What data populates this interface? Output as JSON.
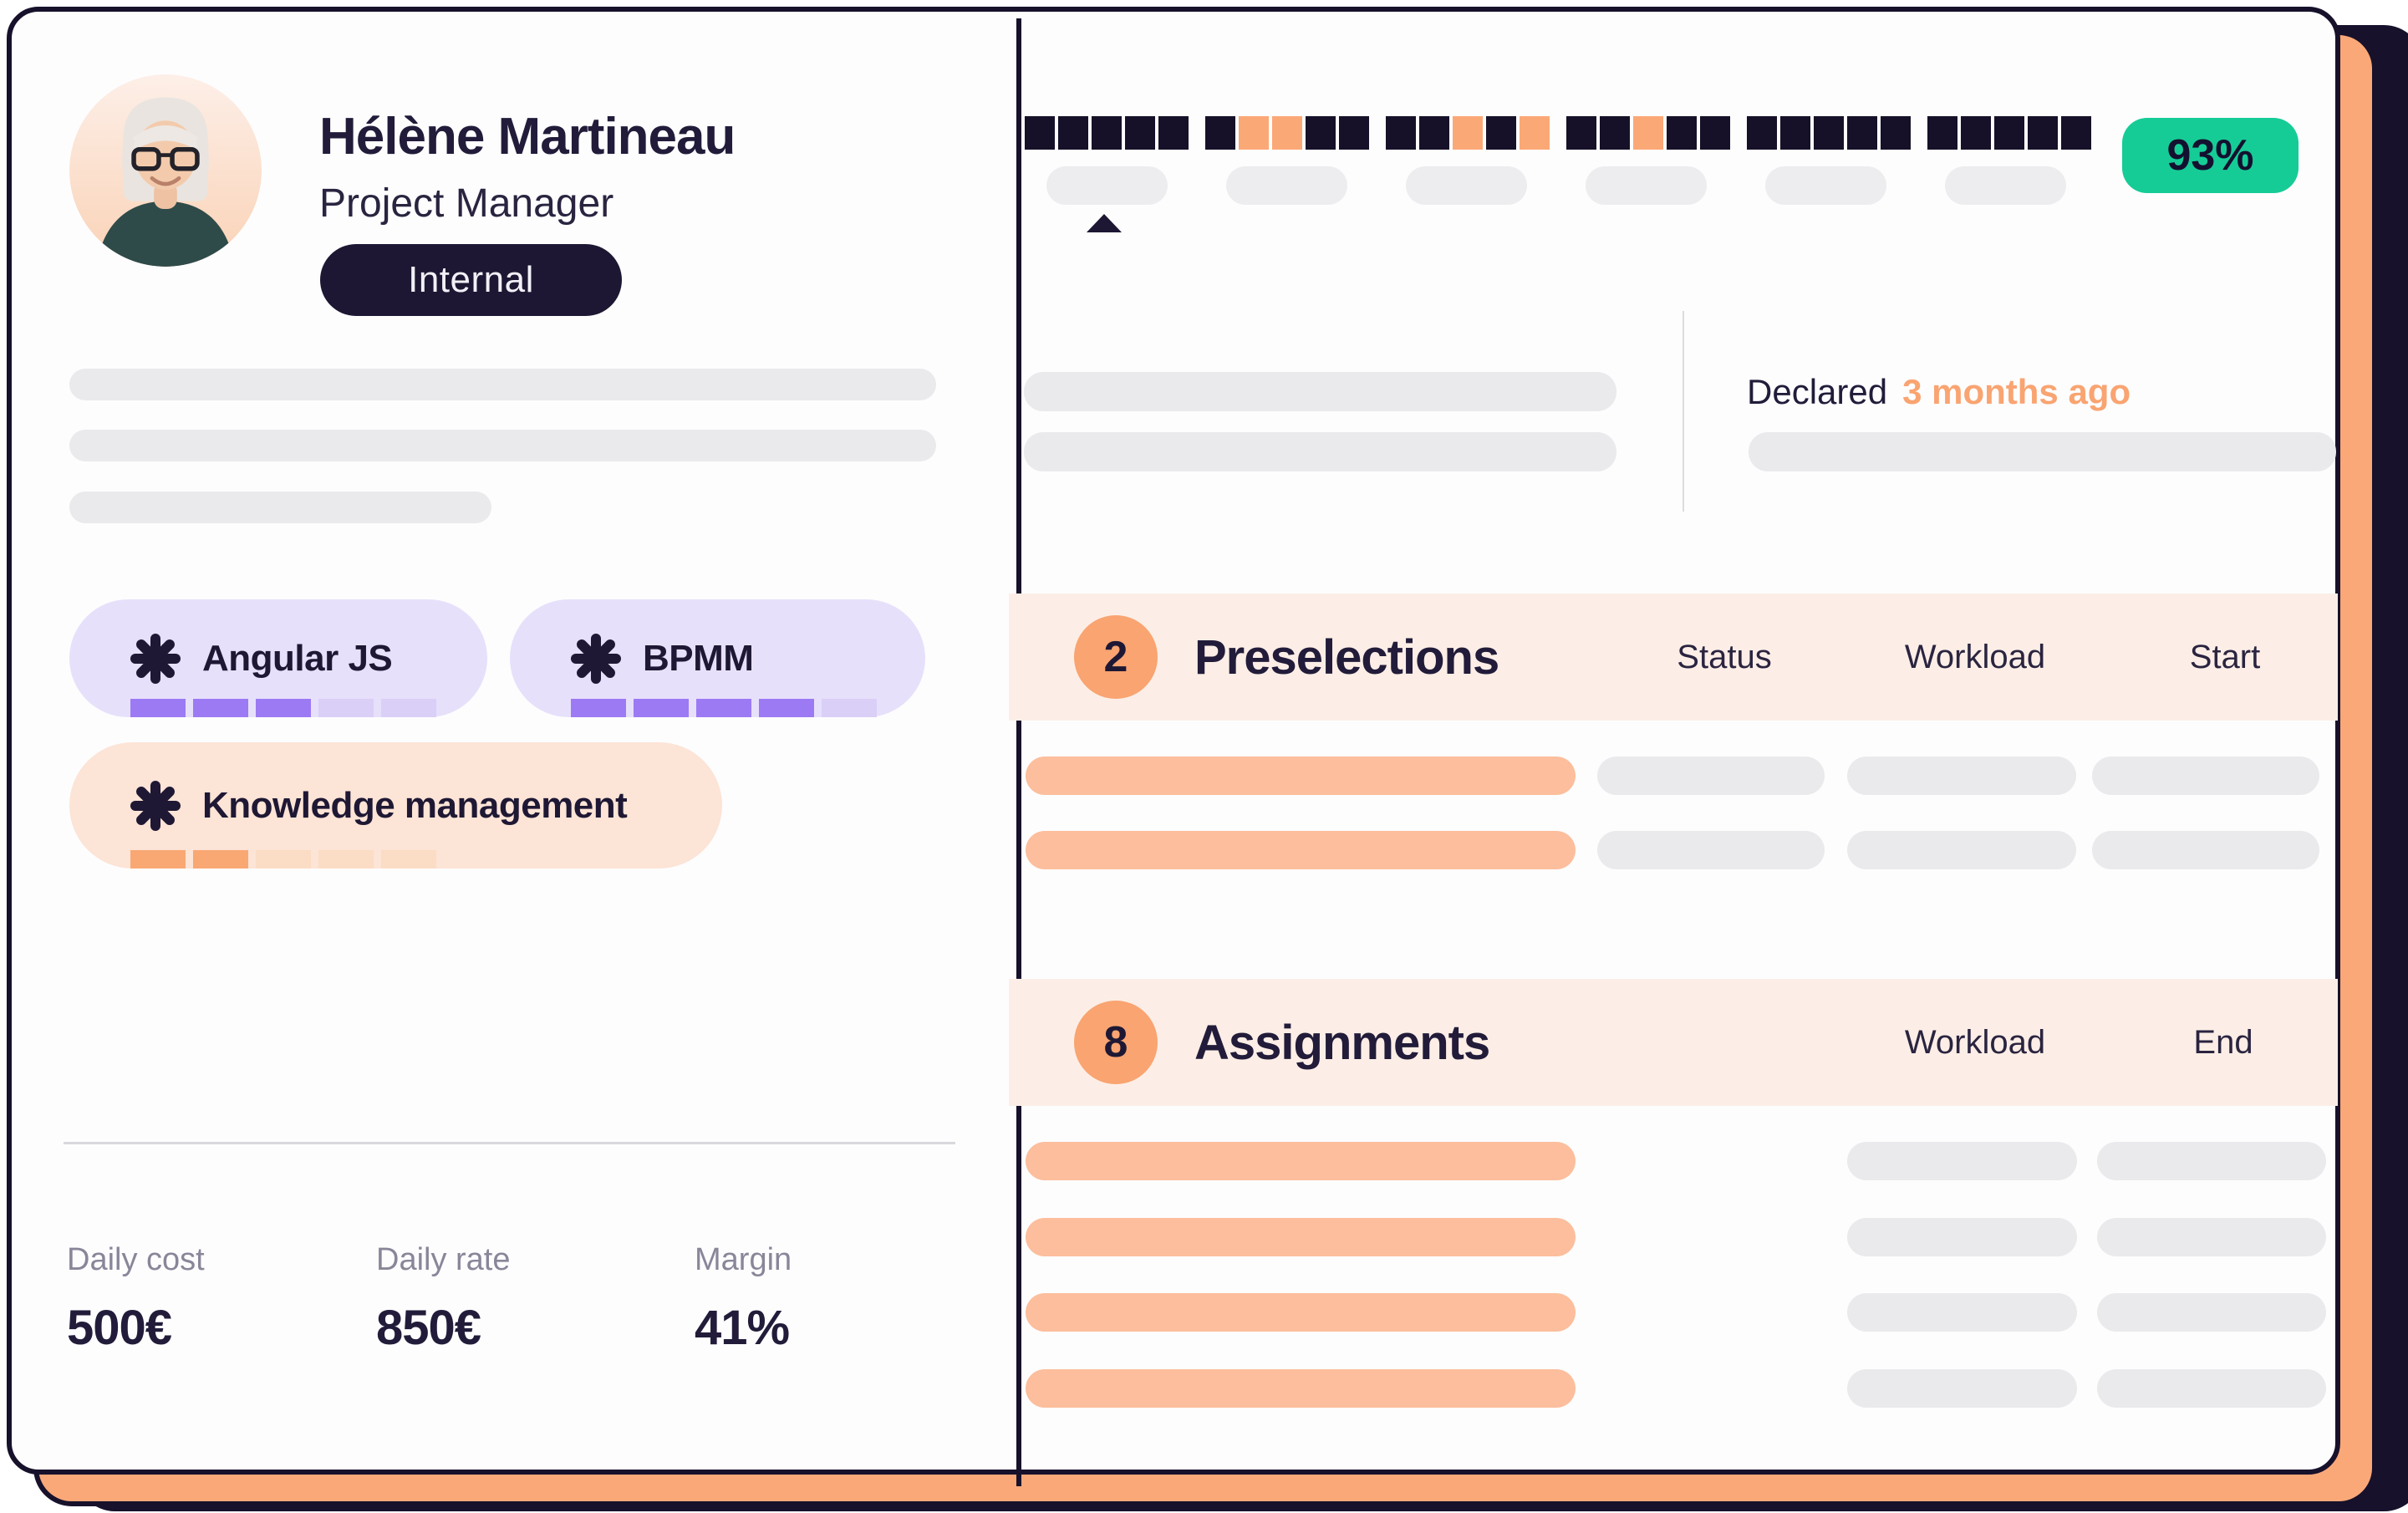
{
  "profile": {
    "name": "Hélène Martineau",
    "role": "Project Manager",
    "badge": "Internal",
    "skills": [
      {
        "name": "Angular JS",
        "level": 3,
        "max": 5,
        "theme": "purple"
      },
      {
        "name": "BPMM",
        "level": 4,
        "max": 5,
        "theme": "purple"
      },
      {
        "name": "Knowledge management",
        "level": 2,
        "max": 5,
        "theme": "peach"
      }
    ],
    "stats": [
      {
        "label": "Daily cost",
        "value": "500€"
      },
      {
        "label": "Daily rate",
        "value": "850€"
      },
      {
        "label": "Margin",
        "value": "41%"
      }
    ]
  },
  "availability": {
    "score": "93%",
    "declared_label": "Declared",
    "declared_value": "3 months ago",
    "timeline": [
      {
        "blocks": [
          "dark",
          "dark",
          "dark",
          "dark",
          "dark"
        ]
      },
      {
        "blocks": [
          "dark",
          "orange",
          "orange",
          "dark",
          "dark"
        ]
      },
      {
        "blocks": [
          "dark",
          "dark",
          "orange",
          "dark",
          "orange"
        ]
      },
      {
        "blocks": [
          "dark",
          "dark",
          "orange",
          "dark",
          "dark"
        ]
      },
      {
        "blocks": [
          "dark",
          "dark",
          "dark",
          "dark",
          "dark"
        ]
      },
      {
        "blocks": [
          "dark",
          "dark",
          "dark",
          "dark",
          "dark"
        ]
      }
    ]
  },
  "sections": [
    {
      "count": "2",
      "title": "Preselections",
      "columns": [
        "Status",
        "Workload",
        "Start"
      ],
      "row_count": 2
    },
    {
      "count": "8",
      "title": "Assignments",
      "columns": [
        "Workload",
        "End"
      ],
      "row_count": 4
    }
  ],
  "colors": {
    "accent_dark": "#1D1733",
    "accent_orange": "#F9A471",
    "accent_orange_soft": "#FCBE9C",
    "accent_orange_block": "#FBA877",
    "accent_green": "#16CC96",
    "peach_band": "#FCEEE6",
    "chip_lavender": "#E7E0FB",
    "chip_peach": "#FCE4D6",
    "purple_fill": "#9C7AF3",
    "purple_light": "#DACFF7",
    "grey_pill": "#EAEAED"
  }
}
